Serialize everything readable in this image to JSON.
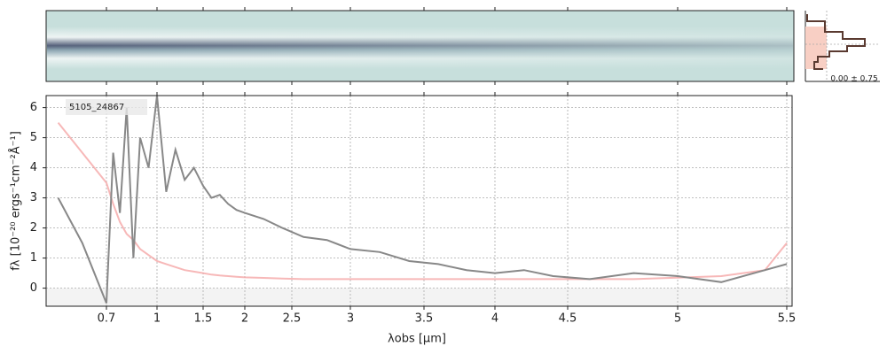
{
  "chart_data": {
    "type": "line",
    "annotation": "5105_24867",
    "side_label": "0.00 ± 0.75",
    "xlabel": "λobs [μm]",
    "ylabel": "fλ [10⁻²⁰ ergs⁻¹cm⁻²Å⁻¹]",
    "x": [
      0.62,
      0.66,
      0.7,
      0.74,
      0.78,
      0.82,
      0.86,
      0.9,
      0.95,
      1.0,
      1.1,
      1.2,
      1.3,
      1.4,
      1.5,
      1.6,
      1.7,
      1.8,
      1.9,
      2.0,
      2.2,
      2.4,
      2.6,
      2.8,
      3.0,
      3.2,
      3.4,
      3.6,
      3.8,
      4.0,
      4.2,
      4.4,
      4.6,
      4.8,
      5.0,
      5.2,
      5.4,
      5.5
    ],
    "series": [
      {
        "color": "#f4a0a0",
        "values": [
          5.5,
          4.5,
          3.5,
          2.8,
          2.2,
          1.8,
          1.6,
          1.3,
          1.1,
          0.9,
          0.8,
          0.7,
          0.6,
          0.55,
          0.5,
          0.45,
          0.42,
          0.4,
          0.38,
          0.36,
          0.34,
          0.32,
          0.3,
          0.3,
          0.3,
          0.3,
          0.3,
          0.3,
          0.3,
          0.3,
          0.3,
          0.3,
          0.3,
          0.3,
          0.35,
          0.4,
          0.6,
          1.5
        ]
      },
      {
        "color": "#888888",
        "values": [
          3.0,
          1.5,
          -0.5,
          4.5,
          2.5,
          6.0,
          1.0,
          5.0,
          4.0,
          6.4,
          3.2,
          4.6,
          3.6,
          4.0,
          3.4,
          3.0,
          3.1,
          2.8,
          2.6,
          2.5,
          2.3,
          2.0,
          1.7,
          1.6,
          1.3,
          1.2,
          0.9,
          0.8,
          0.6,
          0.5,
          0.6,
          0.4,
          0.3,
          0.5,
          0.4,
          0.2,
          0.6,
          0.8
        ]
      }
    ],
    "xlim": [
      0.6,
      5.52
    ],
    "xticks": [
      0.7,
      1.0,
      1.5,
      2.0,
      2.5,
      3.0,
      3.5,
      4.0,
      4.5,
      5.0,
      5.5
    ],
    "xtick_labels_format": null,
    "ylim": [
      -0.6,
      6.4
    ],
    "yticks": [
      0,
      1,
      2,
      3,
      4,
      5,
      6
    ],
    "grid": true
  }
}
